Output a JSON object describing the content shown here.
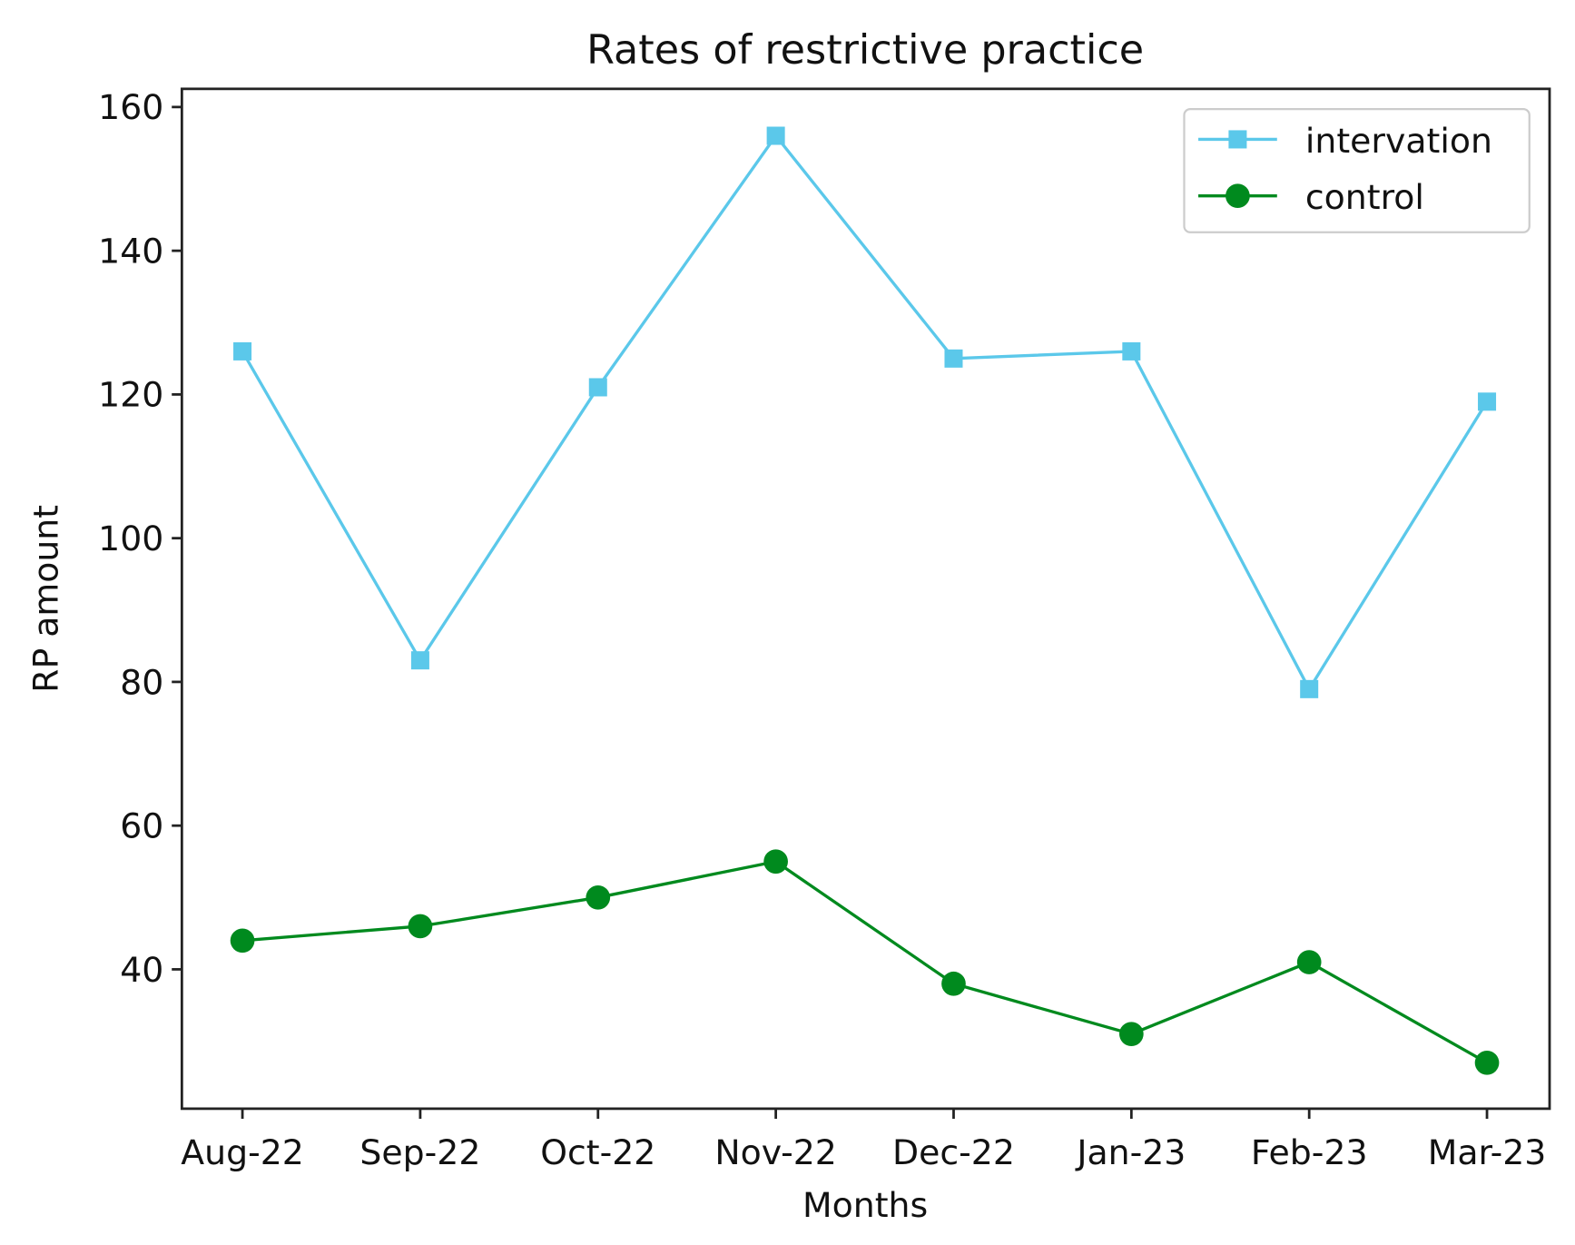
{
  "chart_data": {
    "type": "line",
    "title": "Rates of restrictive practice",
    "xlabel": "Months",
    "ylabel": "RP amount",
    "categories": [
      "Aug-22",
      "Sep-22",
      "Oct-22",
      "Nov-22",
      "Dec-22",
      "Jan-23",
      "Feb-23",
      "Mar-23"
    ],
    "yticks": [
      40,
      60,
      80,
      100,
      120,
      140,
      160
    ],
    "ylim": [
      20.6,
      162.5
    ],
    "grid": false,
    "legend_position": "top-right",
    "series": [
      {
        "name": "intervation",
        "marker": "square",
        "color": "#5bc8ea",
        "values": [
          126,
          83,
          121,
          156,
          125,
          126,
          79,
          119
        ]
      },
      {
        "name": "control",
        "marker": "circle",
        "color": "#008a1e",
        "values": [
          44,
          46,
          50,
          55,
          38,
          31,
          41,
          27
        ]
      }
    ]
  }
}
